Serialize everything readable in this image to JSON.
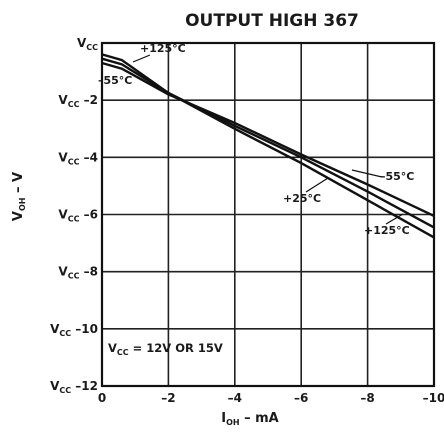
{
  "chart_data": {
    "type": "line",
    "title": "OUTPUT HIGH 367",
    "xlabel": {
      "main": "I",
      "sub": "OH",
      "rest": " – mA"
    },
    "ylabel": {
      "main": "V",
      "sub": "OH",
      "rest": " – V"
    },
    "x_tick_labels": [
      "0",
      "–2",
      "–4",
      "–6",
      "–8",
      "–10"
    ],
    "x_ticks": [
      0,
      -2,
      -4,
      -6,
      -8,
      -10
    ],
    "y_ticks": [
      {
        "value": 0,
        "main": "V",
        "sub": "CC",
        "rest": ""
      },
      {
        "value": -2,
        "main": "V",
        "sub": "CC",
        "rest": " –2"
      },
      {
        "value": -4,
        "main": "V",
        "sub": "CC",
        "rest": " –4"
      },
      {
        "value": -6,
        "main": "V",
        "sub": "CC",
        "rest": " –6"
      },
      {
        "value": -8,
        "main": "V",
        "sub": "CC",
        "rest": " –8"
      },
      {
        "value": -10,
        "main": "V",
        "sub": "CC",
        "rest": " –10"
      },
      {
        "value": -12,
        "main": "V",
        "sub": "CC",
        "rest": " –12"
      }
    ],
    "xlim": [
      0,
      -10
    ],
    "ylim": [
      0,
      -12
    ],
    "grid": true,
    "annotation": {
      "main": "V",
      "sub": "CC",
      "rest": " = 12V OR 15V"
    },
    "series": [
      {
        "name": "+125°C",
        "x": [
          0,
          -0.6,
          -2,
          -4,
          -6,
          -8,
          -10
        ],
        "y": [
          -0.4,
          -0.6,
          -1.75,
          -3.0,
          -4.2,
          -5.5,
          -6.8
        ]
      },
      {
        "name": "+25°C",
        "x": [
          0,
          -0.6,
          -2,
          -4,
          -6,
          -8,
          -10
        ],
        "y": [
          -0.55,
          -0.75,
          -1.75,
          -2.9,
          -4.0,
          -5.2,
          -6.45
        ]
      },
      {
        "name": "–55°C",
        "x": [
          0,
          -0.6,
          -2,
          -4,
          -6,
          -8,
          -10
        ],
        "y": [
          -0.7,
          -0.9,
          -1.8,
          -2.8,
          -3.9,
          -4.95,
          -6.05
        ]
      }
    ],
    "series_labels": [
      "+125°C",
      "–55°C",
      "–55°C",
      "+25°C",
      "+125°C"
    ]
  }
}
